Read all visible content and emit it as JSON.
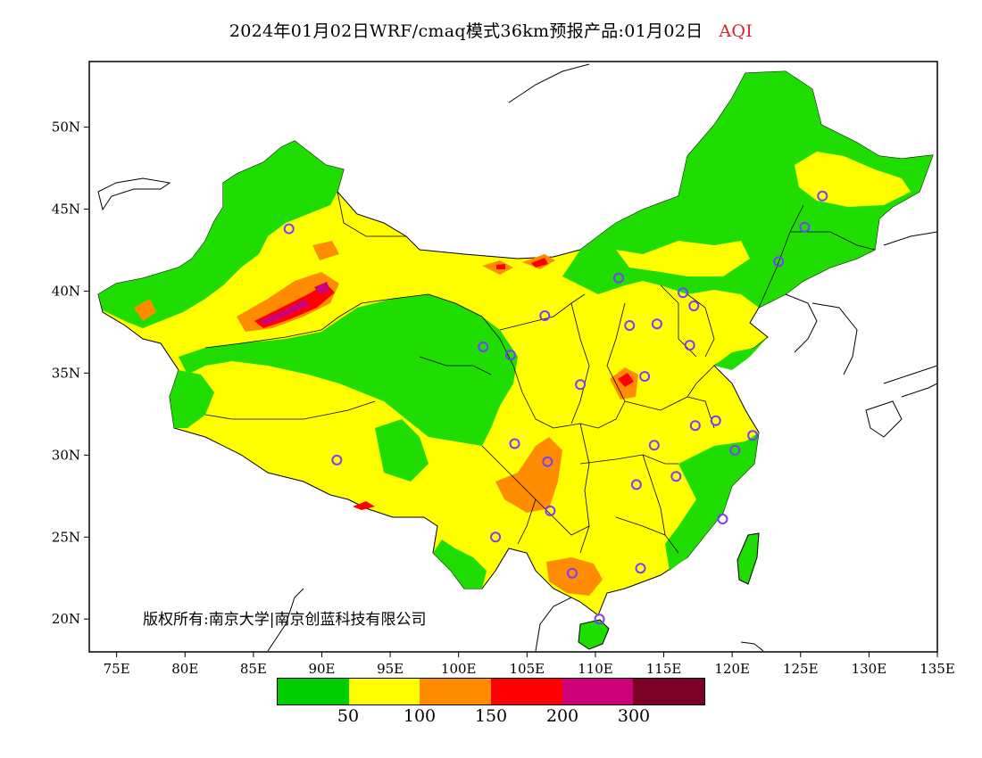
{
  "title": {
    "text": "2024年01月02日WRF/cmaq模式36km预报产品:01月02日",
    "variable": "AQI",
    "variable_color": "#e0202a"
  },
  "axes": {
    "x_ticks": [
      "75E",
      "80E",
      "85E",
      "90E",
      "95E",
      "100E",
      "105E",
      "110E",
      "115E",
      "120E",
      "125E",
      "130E",
      "135E"
    ],
    "y_ticks": [
      "50N",
      "45N",
      "40N",
      "35N",
      "30N",
      "25N",
      "20N"
    ],
    "lon_range": [
      73,
      135
    ],
    "lat_range": [
      18,
      54
    ]
  },
  "copyright": "版权所有:南京大学|南京创蓝科技有限公司",
  "legend": {
    "colors": [
      "#00cc00",
      "#ffff00",
      "#ff8c00",
      "#ff0000",
      "#cc0077",
      "#7a0026"
    ],
    "labels": [
      "50",
      "100",
      "150",
      "200",
      "300"
    ]
  },
  "colors": {
    "good": "#1fdd00",
    "moderate": "#ffff00",
    "unhealthy_sensitive": "#ff8c00",
    "unhealthy": "#ff0000",
    "very_unhealthy": "#cc0077",
    "station_marker": "#7a3cff"
  }
}
